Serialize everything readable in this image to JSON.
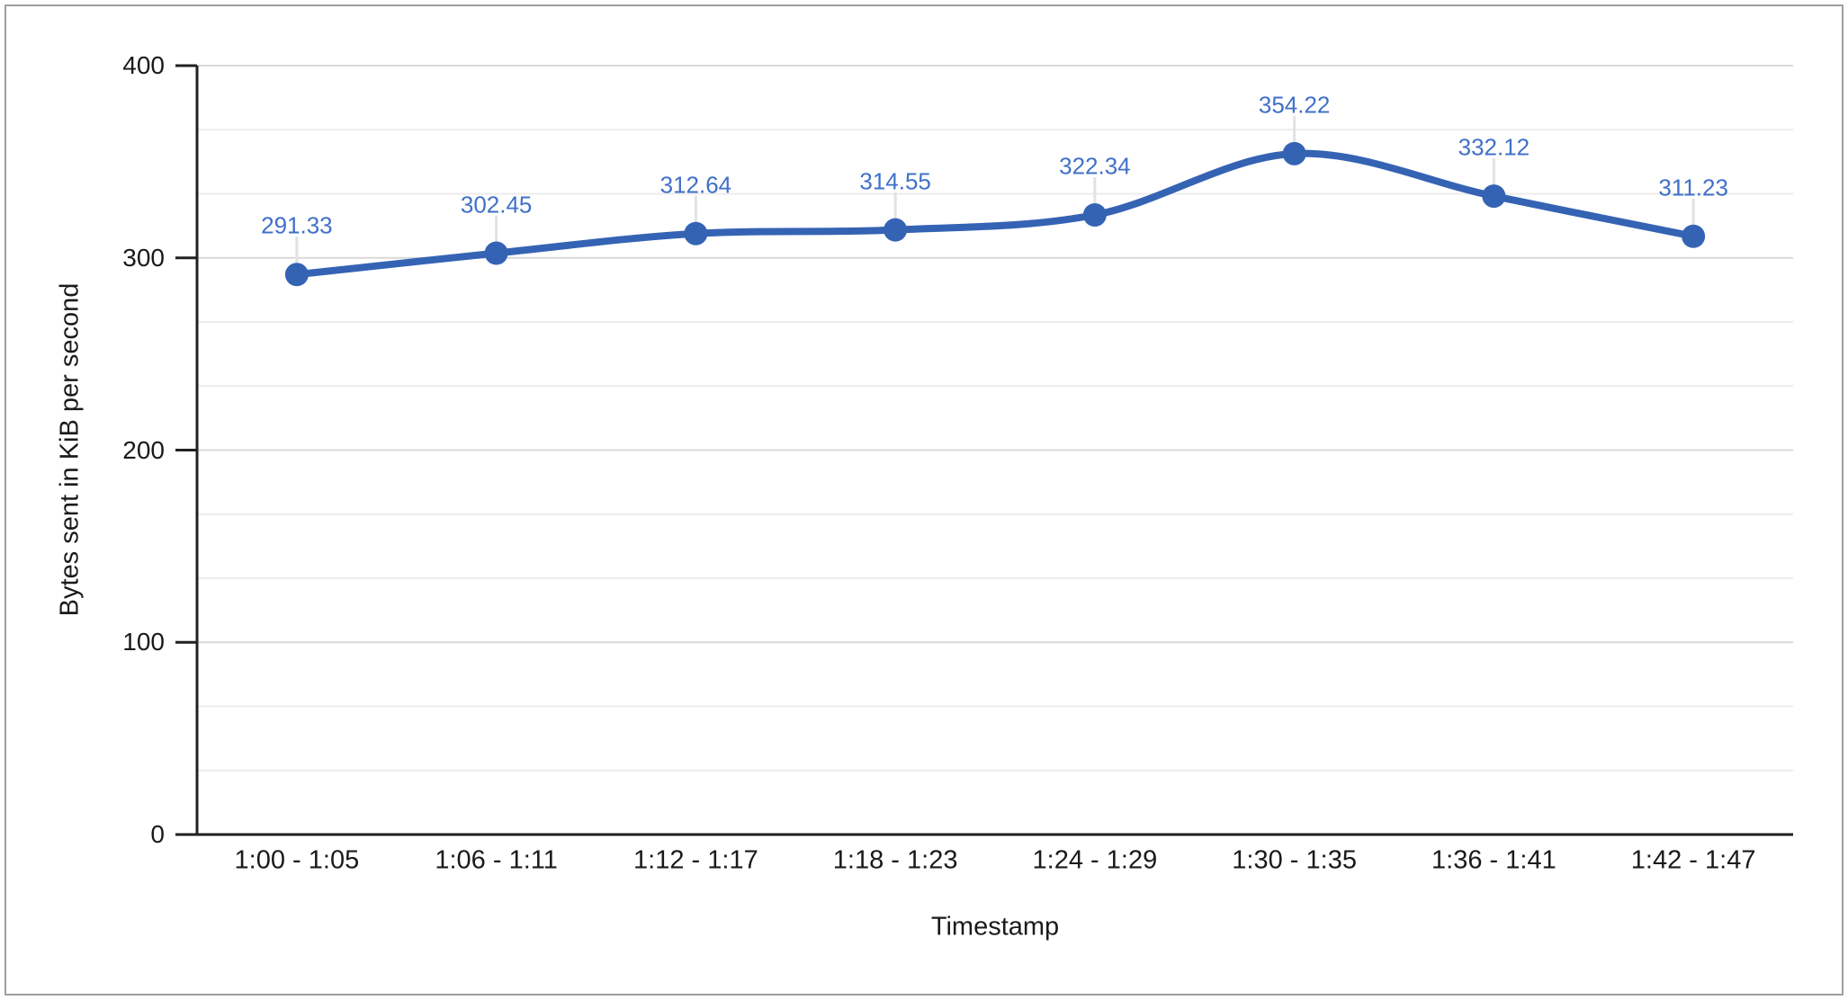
{
  "chart_data": {
    "type": "line",
    "title": "",
    "xlabel": "Timestamp",
    "ylabel": "Bytes sent in KiB per second",
    "categories": [
      "1:00 - 1:05",
      "1:06 - 1:11",
      "1:12 - 1:17",
      "1:18 - 1:23",
      "1:24 - 1:29",
      "1:30 - 1:35",
      "1:36 - 1:41",
      "1:42 - 1:47"
    ],
    "values": [
      291.33,
      302.45,
      312.64,
      314.55,
      322.34,
      354.22,
      332.12,
      311.23
    ],
    "data_labels": [
      "291.33",
      "302.45",
      "312.64",
      "314.55",
      "322.34",
      "354.22",
      "332.12",
      "311.23"
    ],
    "ylim": [
      0,
      400
    ],
    "y_ticks": [
      0,
      100,
      200,
      300,
      400
    ],
    "y_tick_labels": [
      "0",
      "100",
      "200",
      "300",
      "400"
    ],
    "minor_gridlines_between_majors": 2,
    "grid": "on",
    "legend_position": "none",
    "curve": "smooth",
    "colors": {
      "series": "#3563b4",
      "data_label": "#4070c9",
      "gridline_major": "#d9d9d9",
      "gridline_minor": "#ececec",
      "axis_line": "#212121",
      "tick_label": "#1a1a1a",
      "stem": "#e2e2e2",
      "frame_border": "#9e9e9e",
      "background": "#ffffff"
    }
  }
}
